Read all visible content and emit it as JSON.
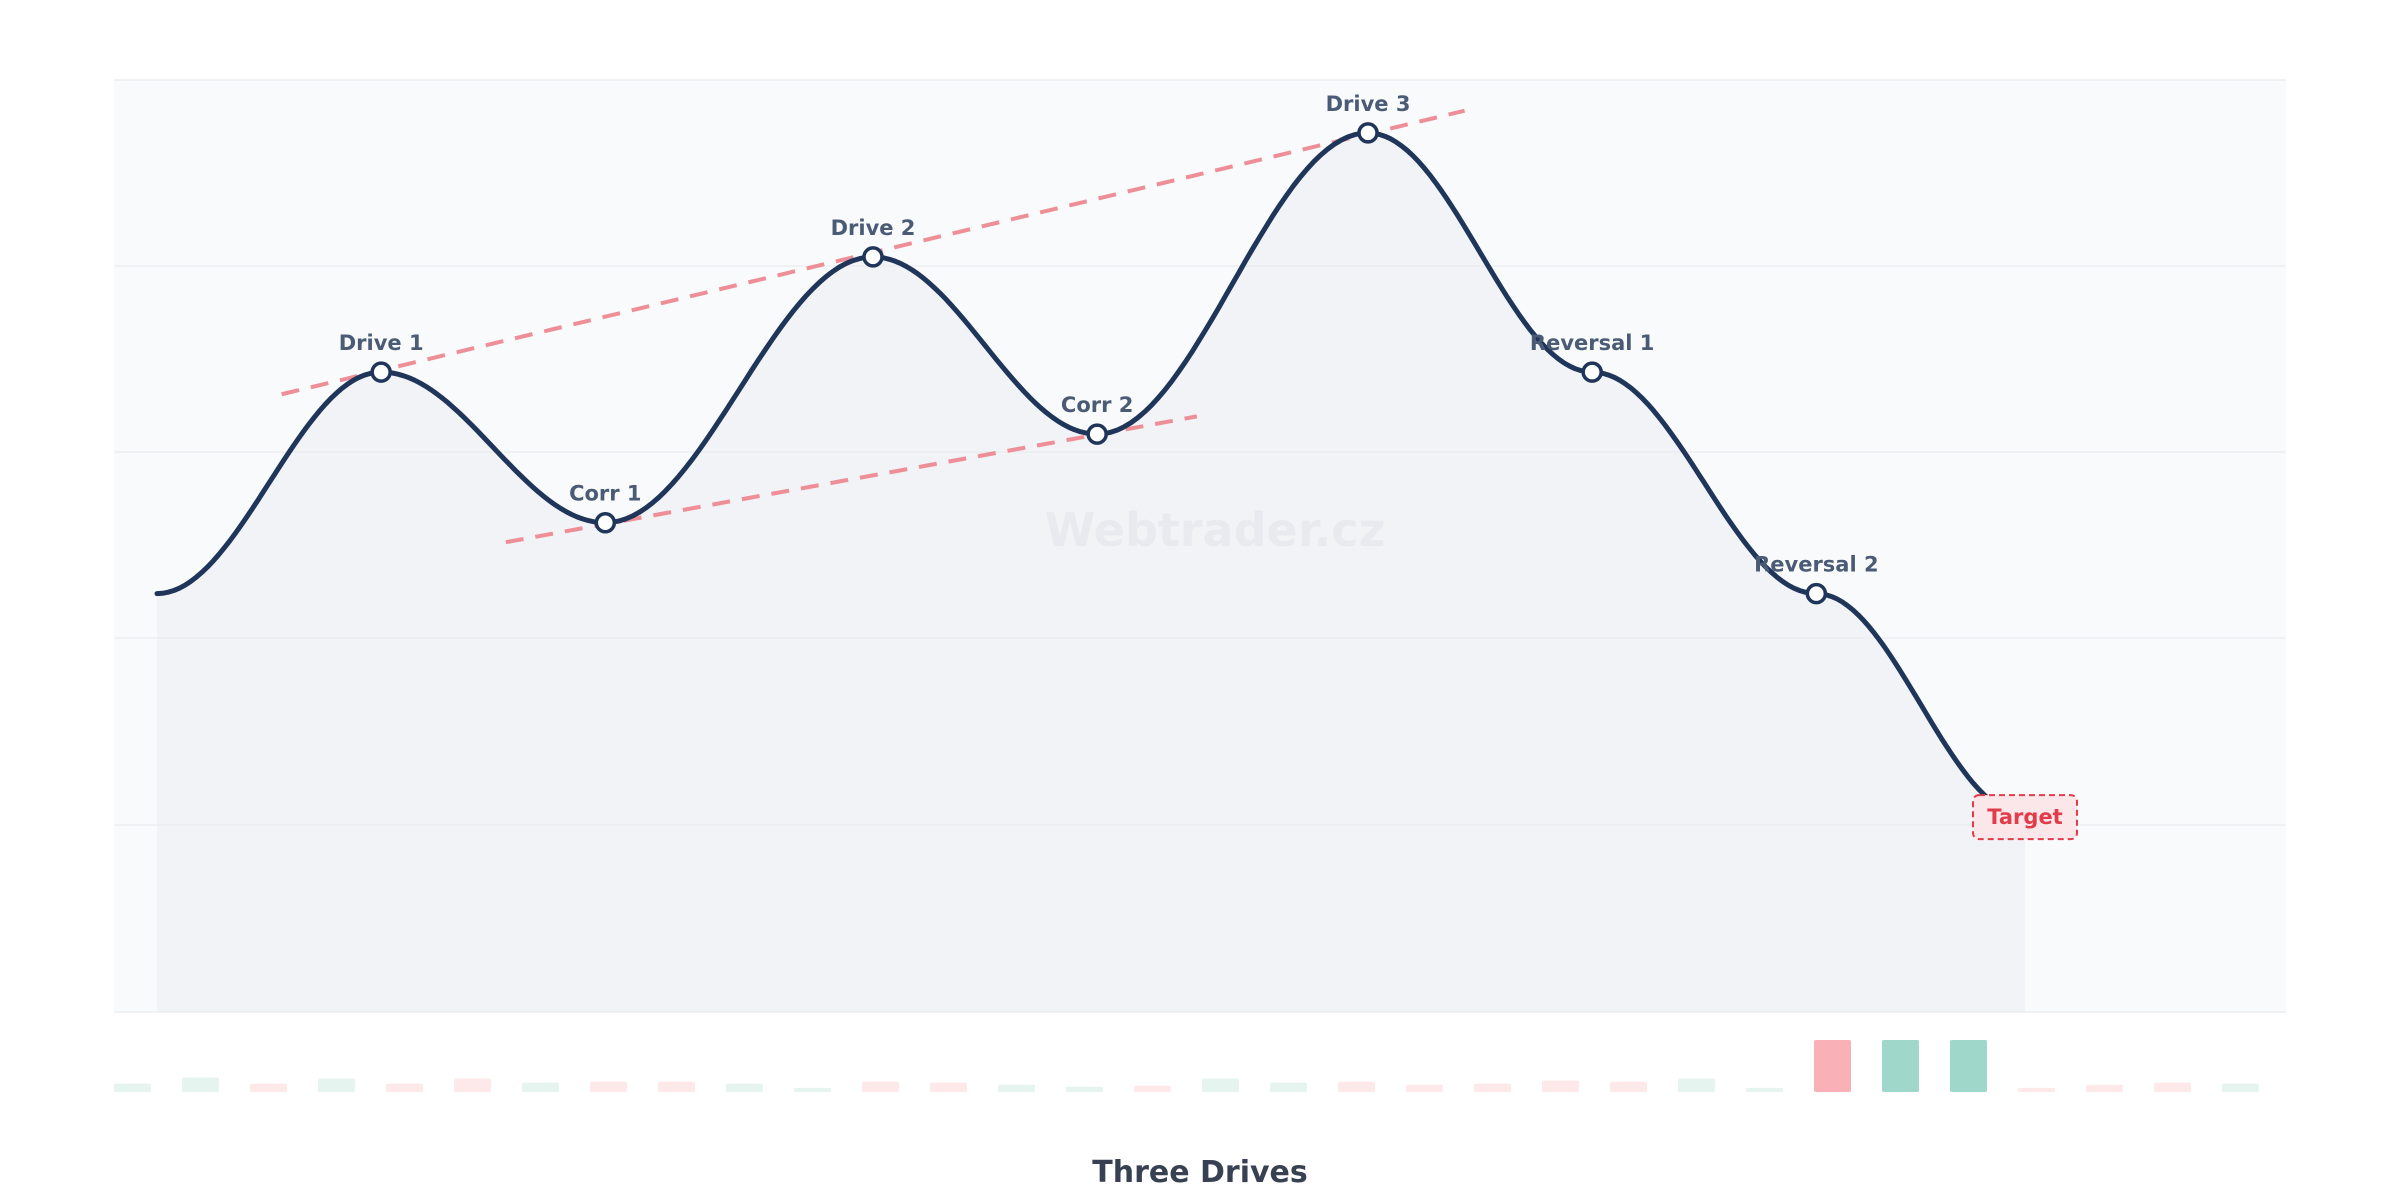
{
  "chart_data": {
    "type": "line",
    "title": "Three Drives",
    "watermark": "Webtrader.cz",
    "xlim": [
      0,
      1
    ],
    "ylim": [
      0,
      1
    ],
    "grid": true,
    "series": [
      {
        "points": [
          {
            "x": 0.0,
            "y": 0.4
          },
          {
            "x": 0.12,
            "y": 0.65,
            "label": "Drive 1"
          },
          {
            "x": 0.24,
            "y": 0.48,
            "label": "Corr 1"
          },
          {
            "x": 0.3833,
            "y": 0.78,
            "label": "Drive 2"
          },
          {
            "x": 0.5033,
            "y": 0.58,
            "label": "Corr 2"
          },
          {
            "x": 0.6483,
            "y": 0.92,
            "label": "Drive 3"
          },
          {
            "x": 0.7683,
            "y": 0.65,
            "label": "Reversal 1"
          },
          {
            "x": 0.8883,
            "y": 0.4,
            "label": "Reversal 2"
          },
          {
            "x": 1.0,
            "y": 0.15
          }
        ]
      }
    ],
    "trendlines": [
      {
        "from": {
          "x": 0.0667,
          "y": 0.625
        },
        "to": {
          "x": 0.7,
          "y": 0.945
        }
      },
      {
        "from": {
          "x": 0.1867,
          "y": 0.458
        },
        "to": {
          "x": 0.5567,
          "y": 0.6
        }
      }
    ],
    "target": {
      "label": "Target",
      "x": 1.0,
      "y": 0.15
    },
    "volume": {
      "values": [
        0.16,
        0.28,
        0.16,
        0.26,
        0.16,
        0.26,
        0.18,
        0.2,
        0.2,
        0.16,
        0.08,
        0.2,
        0.18,
        0.14,
        0.1,
        0.12,
        0.26,
        0.18,
        0.2,
        0.14,
        0.16,
        0.22,
        0.2,
        0.26,
        0.08,
        1.0,
        1.0,
        1.0,
        0.08,
        0.14,
        0.18,
        0.16
      ],
      "direction": [
        "up",
        "up",
        "down",
        "up",
        "down",
        "down",
        "up",
        "down",
        "down",
        "up",
        "up",
        "down",
        "down",
        "up",
        "up",
        "down",
        "up",
        "up",
        "down",
        "down",
        "down",
        "down",
        "down",
        "up",
        "up",
        "down",
        "up",
        "up",
        "down",
        "down",
        "down",
        "up"
      ],
      "highlight": [
        25,
        26,
        27
      ]
    },
    "colors": {
      "line": "#1f365a",
      "trendline": "#ee8f98",
      "up_volume": "#9fd7cb",
      "down_volume": "#f9b0b6",
      "up_volume_faint": "#e6f4f0",
      "down_volume_faint": "#fde9ea",
      "target": "#e23b4a"
    }
  }
}
